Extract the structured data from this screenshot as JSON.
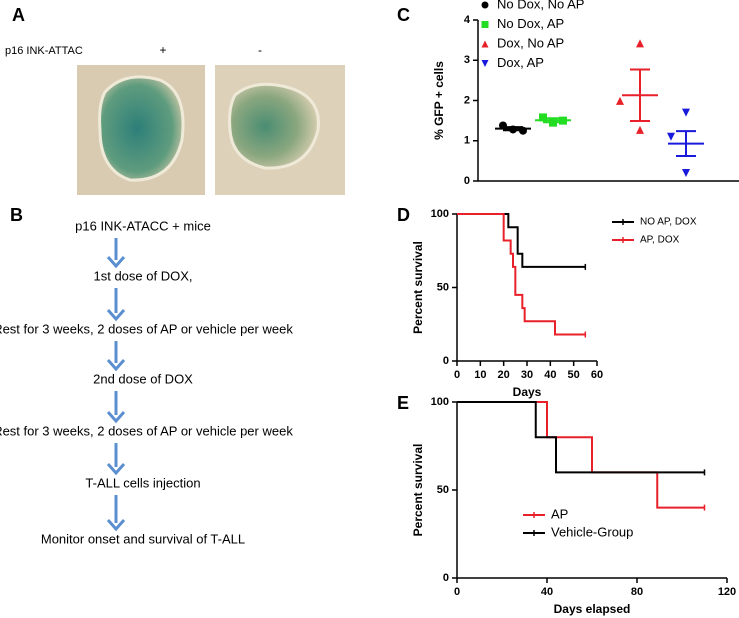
{
  "panels": {
    "a": {
      "label": "A",
      "row_label": "p16 INK-ATTAC",
      "columns": [
        "+",
        "-"
      ]
    },
    "b": {
      "label": "B",
      "steps": [
        "p16 INK-ATACC + mice",
        "1st dose of DOX,",
        "Rest for 3 weeks, 2 doses of AP or vehicle per week",
        "2nd dose of DOX",
        "Rest for 3 weeks, 2 doses of AP or vehicle per week",
        "T-ALL cells injection",
        "Monitor onset and survival of T-ALL"
      ]
    }
  },
  "chart_data": [
    {
      "type": "scatter",
      "panel": "C",
      "ylabel": "% GFP + cells",
      "ylim": [
        0,
        4
      ],
      "yticks": [
        0,
        1,
        2,
        3,
        4
      ],
      "series": [
        {
          "name": "No Dox,  No AP",
          "color": "#000000",
          "marker": "circle",
          "values": [
            1.38,
            1.28,
            1.25
          ],
          "mean": 1.3,
          "sem": 0.04
        },
        {
          "name": "No Dox,  AP",
          "color": "#22dd22",
          "marker": "square",
          "values": [
            1.58,
            1.45,
            1.5
          ],
          "mean": 1.51,
          "sem": 0.05
        },
        {
          "name": "Dox,  No AP",
          "color": "#e8202a",
          "marker": "triangle",
          "values": [
            3.42,
            1.99,
            1.27
          ],
          "mean": 2.13,
          "sem": 0.64
        },
        {
          "name": "Dox,  AP",
          "color": "#1a1adc",
          "marker": "triangle-down",
          "values": [
            1.7,
            1.1,
            0.2
          ],
          "mean": 0.93,
          "sem": 0.31
        }
      ]
    },
    {
      "type": "survival",
      "panel": "D",
      "xlabel": "Days",
      "ylabel": "Percent survival",
      "xlim": [
        0,
        60
      ],
      "xticks": [
        0,
        10,
        20,
        30,
        40,
        50,
        60
      ],
      "ylim": [
        0,
        100
      ],
      "yticks": [
        0,
        50,
        100
      ],
      "legend": "top-right",
      "series": [
        {
          "name": "NO AP, DOX",
          "color": "#000000",
          "x": [
            0,
            22,
            26,
            28,
            55
          ],
          "values": [
            100,
            91,
            73,
            64,
            64
          ]
        },
        {
          "name": "AP, DOX",
          "color": "#e8202a",
          "x": [
            0,
            20,
            23,
            24,
            25,
            28,
            29,
            42,
            55
          ],
          "values": [
            100,
            82,
            73,
            64,
            45,
            36,
            27,
            18,
            18
          ]
        }
      ]
    },
    {
      "type": "survival",
      "panel": "E",
      "xlabel": "Days elapsed",
      "ylabel": "Percent survival",
      "xlim": [
        0,
        120
      ],
      "xticks": [
        0,
        40,
        80,
        120
      ],
      "ylim": [
        0,
        100
      ],
      "yticks": [
        0,
        50,
        100
      ],
      "legend": "bottom-left",
      "series": [
        {
          "name": "AP",
          "color": "#e8202a",
          "x": [
            0,
            40,
            60,
            89,
            110
          ],
          "values": [
            100,
            80,
            60,
            40,
            40
          ]
        },
        {
          "name": "Vehicle-Group",
          "color": "#000000",
          "x": [
            0,
            35,
            44,
            110
          ],
          "values": [
            100,
            80,
            60,
            60
          ]
        }
      ]
    }
  ]
}
